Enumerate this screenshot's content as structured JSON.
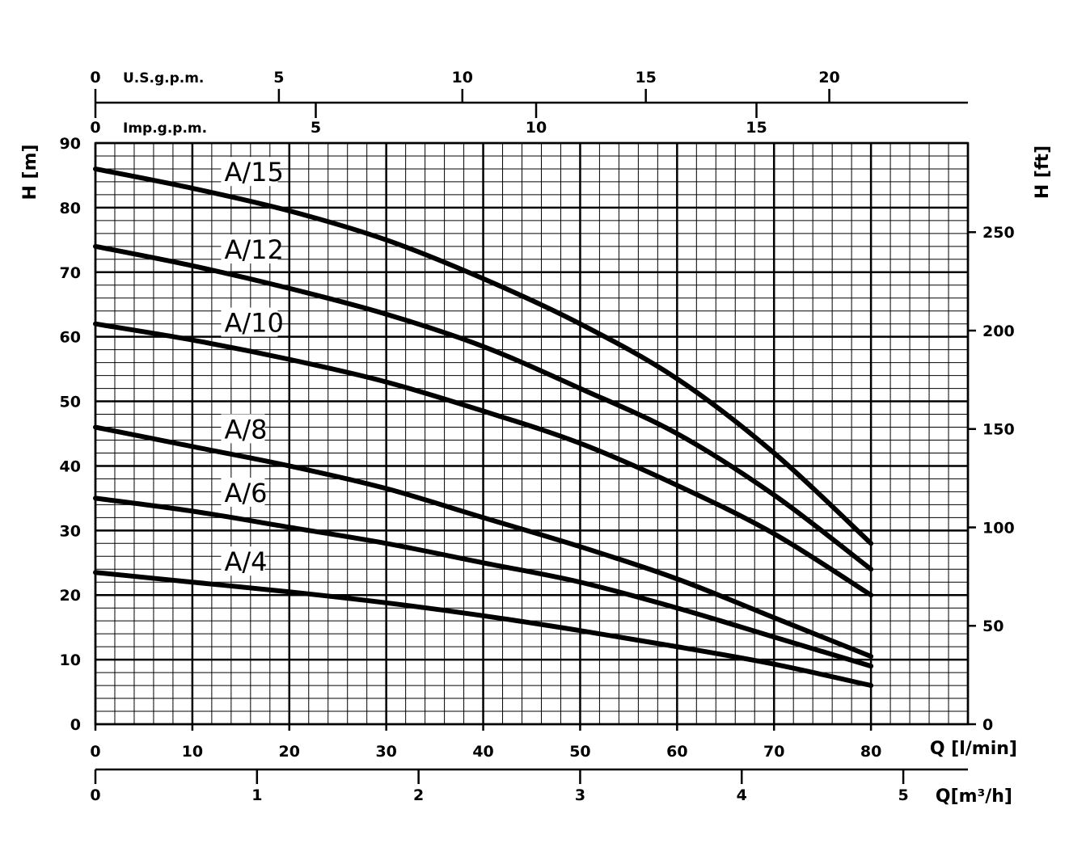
{
  "chart_data": {
    "type": "line",
    "x_axis": {
      "label": "Q [l/min]",
      "range": [
        0,
        90
      ],
      "ticks": [
        0,
        10,
        20,
        30,
        40,
        50,
        60,
        70,
        80
      ]
    },
    "y_axis_left": {
      "label": "H [m]",
      "range": [
        0,
        90
      ],
      "ticks": [
        0,
        10,
        20,
        30,
        40,
        50,
        60,
        70,
        80,
        90
      ]
    },
    "y_axis_right": {
      "label": "H [ft]",
      "ticks": [
        0,
        50,
        100,
        150,
        200,
        250
      ]
    },
    "x_axis_m3h": {
      "label": "Q[m³/h]",
      "ticks": [
        0,
        1,
        2,
        3,
        4,
        5
      ]
    },
    "x_axis_usgpm": {
      "label": "U.S.g.p.m.",
      "ticks": [
        0,
        5,
        10,
        15,
        20
      ]
    },
    "x_axis_impgpm": {
      "label": "Imp.g.p.m.",
      "ticks": [
        0,
        5,
        10,
        15
      ]
    },
    "grid": true,
    "series": [
      {
        "name": "A/15",
        "x": [
          0,
          10,
          20,
          30,
          40,
          50,
          60,
          70,
          80
        ],
        "y": [
          86,
          83,
          79.5,
          75,
          69,
          62,
          53.5,
          42,
          28
        ]
      },
      {
        "name": "A/12",
        "x": [
          0,
          10,
          20,
          30,
          40,
          50,
          60,
          70,
          80
        ],
        "y": [
          74,
          71,
          67.5,
          63.5,
          58.5,
          52,
          45,
          35.5,
          24
        ]
      },
      {
        "name": "A/10",
        "x": [
          0,
          10,
          20,
          30,
          40,
          50,
          60,
          70,
          80
        ],
        "y": [
          62,
          59.5,
          56.5,
          53,
          48.5,
          43.5,
          37,
          29.5,
          20
        ]
      },
      {
        "name": "A/8",
        "x": [
          0,
          10,
          20,
          30,
          40,
          50,
          60,
          70,
          80
        ],
        "y": [
          46,
          43,
          40,
          36.5,
          32,
          27.5,
          22.5,
          16.5,
          10.5
        ]
      },
      {
        "name": "A/6",
        "x": [
          0,
          10,
          20,
          30,
          40,
          50,
          60,
          70,
          80
        ],
        "y": [
          35,
          33,
          30.5,
          28,
          25,
          22,
          18,
          13.5,
          9
        ]
      },
      {
        "name": "A/4",
        "x": [
          0,
          10,
          20,
          30,
          40,
          50,
          60,
          70,
          80
        ],
        "y": [
          23.5,
          22,
          20.5,
          18.8,
          16.8,
          14.5,
          12,
          9.3,
          6
        ]
      }
    ]
  }
}
